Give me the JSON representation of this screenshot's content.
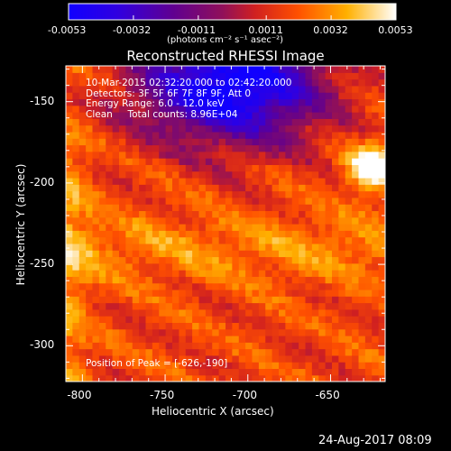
{
  "colorbar": {
    "tick_labels": [
      "-0.0053",
      "-0.0032",
      "-0.0011",
      "0.0011",
      "0.0032",
      "0.0053"
    ],
    "unit_label": "(photons cm⁻² s⁻¹ asec⁻²)",
    "range": [
      -0.0053,
      0.0053
    ]
  },
  "title": "Reconstructed RHESSI Image",
  "info": {
    "line1": "10-Mar-2015 02:32:20.000 to 02:42:20.000",
    "line2": "Detectors: 3F 5F 6F 7F 8F 9F, Att 0",
    "line3": "Energy Range: 6.0 - 12.0 keV",
    "line4": "Clean     Total counts: 8.96E+04"
  },
  "peak_text": "Position of Peak = [-626,-190]",
  "date_stamp": "24-Aug-2017 08:09",
  "chart_data": {
    "type": "heatmap",
    "title": "Reconstructed RHESSI Image",
    "xlabel": "Heliocentric X (arcsec)",
    "ylabel": "Heliocentric Y (arcsec)",
    "xlim": [
      -810,
      -617
    ],
    "ylim": [
      -322,
      -128
    ],
    "x_ticks": [
      -800,
      -750,
      -700,
      -650
    ],
    "y_ticks": [
      -150,
      -200,
      -250,
      -300
    ],
    "x_tick_labels": [
      "-800",
      "-750",
      "-700",
      "-650"
    ],
    "y_tick_labels": [
      "-150",
      "-200",
      "-250",
      "-300"
    ],
    "colormap": "red-temperature",
    "peak_position": [
      -626,
      -190
    ],
    "features": {
      "bright_peak": [
        -626,
        -190
      ],
      "dark_region_center": [
        -710,
        -140
      ]
    }
  }
}
